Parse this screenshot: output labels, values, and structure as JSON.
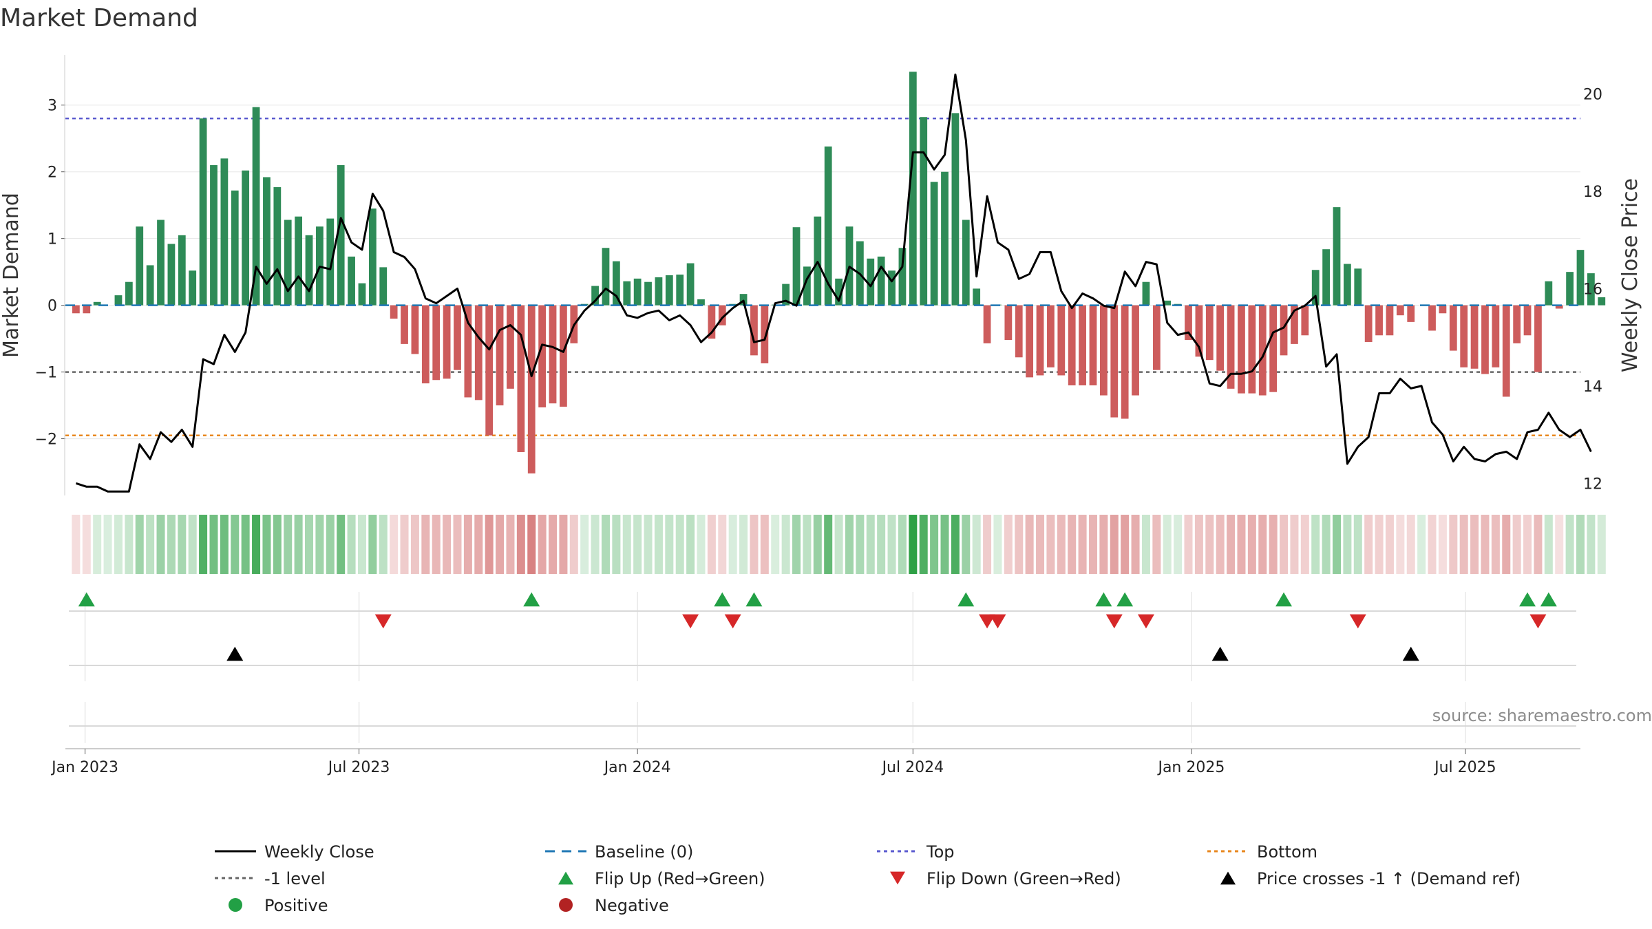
{
  "chart_data": {
    "type": "bar+line",
    "title": "Market Demand",
    "ylabel_left": "Market Demand",
    "ylabel_right": "Weekly Close Price",
    "source": "source: sharemaestro.com",
    "x_range": [
      "2022-12-19",
      "2025-09-15"
    ],
    "ylim_left": [
      -2.85,
      3.75
    ],
    "ylim_right": [
      11.75,
      20.8
    ],
    "yticks_left": [
      {
        "value": 3,
        "label": "3"
      },
      {
        "value": 2,
        "label": "2"
      },
      {
        "value": 1,
        "label": "1"
      },
      {
        "value": 0,
        "label": "0"
      },
      {
        "value": -1,
        "label": "−1"
      },
      {
        "value": -2,
        "label": "−2"
      }
    ],
    "yticks_right": [
      {
        "value": 20,
        "label": "20"
      },
      {
        "value": 18,
        "label": "18"
      },
      {
        "value": 16,
        "label": "16"
      },
      {
        "value": 14,
        "label": "14"
      },
      {
        "value": 12,
        "label": "12"
      }
    ],
    "xticks": [
      {
        "date": "2023-01-01",
        "label": "Jan 2023"
      },
      {
        "date": "2023-07-01",
        "label": "Jul 2023"
      },
      {
        "date": "2024-01-01",
        "label": "Jan 2024"
      },
      {
        "date": "2024-07-01",
        "label": "Jul 2024"
      },
      {
        "date": "2025-01-01",
        "label": "Jan 2025"
      },
      {
        "date": "2025-07-01",
        "label": "Jul 2025"
      }
    ],
    "start_date": "2022-12-26",
    "week_step_days": 7,
    "reference_lines": [
      {
        "name": "Top",
        "value": 2.8,
        "color": "#5a5acf",
        "dash": "5,5"
      },
      {
        "name": "-1 level",
        "value": -1,
        "color": "#666666",
        "dash": "5,5"
      },
      {
        "name": "Bottom",
        "value": -1.95,
        "color": "#e8871e",
        "dash": "5,5"
      }
    ],
    "demand": [
      -0.12,
      -0.12,
      0.05,
      0,
      0.15,
      0.35,
      1.18,
      0.6,
      1.28,
      0.92,
      1.05,
      0.52,
      2.8,
      2.1,
      2.2,
      1.72,
      2.02,
      2.97,
      1.92,
      1.77,
      1.28,
      1.33,
      1.05,
      1.18,
      1.3,
      2.1,
      0.73,
      0.33,
      1.45,
      0.57,
      -0.2,
      -0.58,
      -0.73,
      -1.17,
      -1.12,
      -1.1,
      -0.97,
      -1.38,
      -1.42,
      -1.95,
      -1.5,
      -1.25,
      -2.2,
      -2.52,
      -1.53,
      -1.47,
      -1.52,
      -0.57,
      0.02,
      0.29,
      0.86,
      0.66,
      0.36,
      0.4,
      0.35,
      0.42,
      0.45,
      0.46,
      0.63,
      0.09,
      -0.5,
      -0.3,
      0.02,
      0.17,
      -0.75,
      -0.87,
      0.01,
      0.32,
      1.17,
      0.58,
      1.33,
      2.38,
      0.4,
      1.18,
      0.96,
      0.7,
      0.73,
      0.52,
      0.86,
      3.5,
      2.82,
      1.85,
      2.0,
      2.88,
      1.28,
      0.25,
      -0.57,
      0.01,
      -0.52,
      -0.78,
      -1.08,
      -1.05,
      -0.93,
      -1.05,
      -1.2,
      -1.2,
      -1.2,
      -1.35,
      -1.68,
      -1.7,
      -1.35,
      0.35,
      -0.97,
      0.07,
      0.02,
      -0.52,
      -0.77,
      -0.82,
      -0.98,
      -1.25,
      -1.32,
      -1.32,
      -1.35,
      -1.3,
      -0.75,
      -0.58,
      -0.45,
      0.53,
      0.84,
      1.47,
      0.62,
      0.55,
      -0.55,
      -0.45,
      -0.45,
      -0.15,
      -0.25,
      0,
      -0.38,
      -0.12,
      -0.68,
      -0.93,
      -0.95,
      -1.03,
      -0.93,
      -1.37,
      -0.57,
      -0.45,
      -1.0,
      0.36,
      -0.05,
      0.5,
      0.83,
      0.48,
      0.12
    ],
    "weekly_close": [
      12.0,
      11.93,
      11.93,
      11.83,
      11.83,
      11.83,
      12.8,
      12.5,
      13.05,
      12.85,
      13.1,
      12.75,
      14.55,
      14.45,
      15.05,
      14.7,
      15.1,
      16.45,
      16.1,
      16.4,
      15.95,
      16.25,
      15.95,
      16.45,
      16.4,
      17.45,
      16.95,
      16.8,
      17.95,
      17.6,
      16.75,
      16.65,
      16.4,
      15.8,
      15.7,
      15.85,
      16.0,
      15.3,
      15.0,
      14.75,
      15.15,
      15.25,
      15.05,
      14.2,
      14.85,
      14.8,
      14.7,
      15.25,
      15.55,
      15.75,
      16.0,
      15.85,
      15.45,
      15.4,
      15.5,
      15.55,
      15.35,
      15.45,
      15.25,
      14.9,
      15.1,
      15.4,
      15.6,
      15.75,
      14.9,
      14.95,
      15.7,
      15.75,
      15.65,
      16.2,
      16.55,
      16.1,
      15.75,
      16.45,
      16.3,
      16.05,
      16.45,
      16.15,
      16.45,
      18.8,
      18.8,
      18.45,
      18.75,
      20.4,
      19.05,
      16.25,
      17.9,
      16.95,
      16.8,
      16.2,
      16.3,
      16.75,
      16.75,
      15.95,
      15.6,
      15.9,
      15.8,
      15.65,
      15.6,
      16.35,
      16.05,
      16.55,
      16.5,
      15.3,
      15.05,
      15.1,
      14.8,
      14.05,
      14.0,
      14.25,
      14.25,
      14.3,
      14.6,
      15.1,
      15.2,
      15.55,
      15.65,
      15.85,
      14.4,
      14.65,
      12.4,
      12.75,
      12.95,
      13.85,
      13.85,
      14.15,
      13.95,
      14.0,
      13.25,
      13.0,
      12.45,
      12.75,
      12.5,
      12.45,
      12.6,
      12.65,
      12.5,
      13.05,
      13.1,
      13.45,
      13.1,
      12.95,
      13.1,
      12.65
    ],
    "flip_up_dates": [
      "2023-01-02",
      "2023-10-23",
      "2024-02-26",
      "2024-03-18",
      "2024-08-05",
      "2024-11-04",
      "2024-11-18",
      "2025-03-03",
      "2025-08-11",
      "2025-08-25"
    ],
    "flip_down_dates": [
      "2023-07-17",
      "2024-02-05",
      "2024-03-04",
      "2024-08-19",
      "2024-08-26",
      "2024-11-11",
      "2024-12-02",
      "2025-04-21",
      "2025-08-18"
    ],
    "price_cross_dates": [
      "2023-04-10",
      "2025-01-20",
      "2025-05-26"
    ],
    "colors": {
      "positive": "#2e8b57",
      "negative": "#cd5c5c",
      "price_line": "#000000",
      "baseline": "#1f77b4",
      "flip_up": "#22a045",
      "flip_down": "#d62728",
      "price_cross": "#000000",
      "positive_dot": "#22a045",
      "negative_dot": "#b22222"
    },
    "legend": [
      {
        "label": "Weekly Close",
        "kind": "line",
        "color": "#000000",
        "dash": ""
      },
      {
        "label": "Baseline (0)",
        "kind": "line",
        "color": "#1f77b4",
        "dash": "14,10"
      },
      {
        "label": "Top",
        "kind": "line",
        "color": "#5a5acf",
        "dash": "5,5"
      },
      {
        "label": "Bottom",
        "kind": "line",
        "color": "#e8871e",
        "dash": "5,5"
      },
      {
        "label": "-1 level",
        "kind": "line",
        "color": "#666666",
        "dash": "5,5"
      },
      {
        "label": "Flip Up (Red→Green)",
        "kind": "tri-up",
        "color": "#22a045"
      },
      {
        "label": "Flip Down (Green→Red)",
        "kind": "tri-down",
        "color": "#d62728"
      },
      {
        "label": "Price crosses -1 ↑ (Demand ref)",
        "kind": "tri-up",
        "color": "#000000"
      },
      {
        "label": "Positive",
        "kind": "dot",
        "color": "#22a045"
      },
      {
        "label": "Negative",
        "kind": "dot",
        "color": "#b22222"
      }
    ]
  }
}
